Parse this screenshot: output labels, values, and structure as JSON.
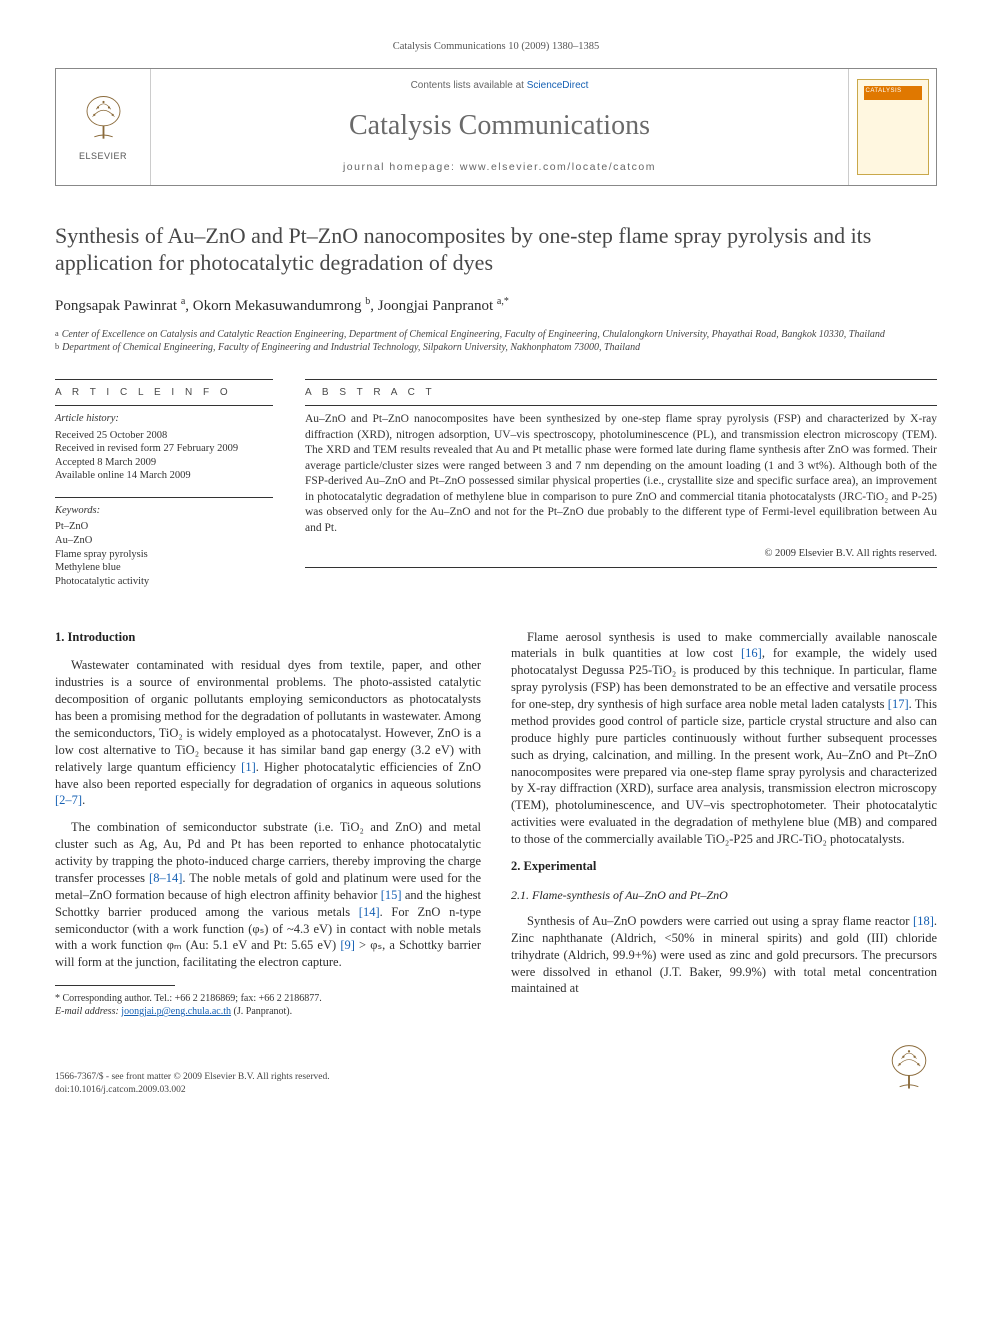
{
  "header": {
    "citation": "Catalysis Communications 10 (2009) 1380–1385"
  },
  "masthead": {
    "elsevier_label": "ELSEVIER",
    "contents_prefix": "Contents lists available at ",
    "contents_link": "ScienceDirect",
    "journal_name": "Catalysis Communications",
    "homepage": "journal homepage: www.elsevier.com/locate/catcom",
    "cover_label": "CATALYSIS"
  },
  "article": {
    "title": "Synthesis of Au–ZnO and Pt–ZnO nanocomposites by one-step flame spray pyrolysis and its application for photocatalytic degradation of dyes",
    "authors_html": "Pongsapak Pawinrat <sup>a</sup>, Okorn Mekasuwandumrong <sup>b</sup>, Joongjai Panpranot <sup>a,*</sup>",
    "affiliations": [
      {
        "marker": "a",
        "text": "Center of Excellence on Catalysis and Catalytic Reaction Engineering, Department of Chemical Engineering, Faculty of Engineering, Chulalongkorn University, Phayathai Road, Bangkok 10330, Thailand"
      },
      {
        "marker": "b",
        "text": "Department of Chemical Engineering, Faculty of Engineering and Industrial Technology, Silpakorn University, Nakhonphatom 73000, Thailand"
      }
    ]
  },
  "labels": {
    "article_info": "A R T I C L E   I N F O",
    "abstract": "A B S T R A C T"
  },
  "article_info": {
    "history_heading": "Article history:",
    "history": [
      "Received 25 October 2008",
      "Received in revised form 27 February 2009",
      "Accepted 8 March 2009",
      "Available online 14 March 2009"
    ],
    "keywords_heading": "Keywords:",
    "keywords": [
      "Pt–ZnO",
      "Au–ZnO",
      "Flame spray pyrolysis",
      "Methylene blue",
      "Photocatalytic activity"
    ]
  },
  "abstract": {
    "text": "Au–ZnO and Pt–ZnO nanocomposites have been synthesized by one-step flame spray pyrolysis (FSP) and characterized by X-ray diffraction (XRD), nitrogen adsorption, UV–vis spectroscopy, photoluminescence (PL), and transmission electron microscopy (TEM). The XRD and TEM results revealed that Au and Pt metallic phase were formed late during flame synthesis after ZnO was formed. Their average particle/cluster sizes were ranged between 3 and 7 nm depending on the amount loading (1 and 3 wt%). Although both of the FSP-derived Au–ZnO and Pt–ZnO possessed similar physical properties (i.e., crystallite size and specific surface area), an improvement in photocatalytic degradation of methylene blue in comparison to pure ZnO and commercial titania photocatalysts (JRC-TiO₂ and P-25) was observed only for the Au–ZnO and not for the Pt–ZnO due probably to the different type of Fermi-level equilibration between Au and Pt.",
    "copyright": "© 2009 Elsevier B.V. All rights reserved."
  },
  "body": {
    "section1_heading": "1. Introduction",
    "section1_paras": [
      "Wastewater contaminated with residual dyes from textile, paper, and other industries is a source of environmental problems. The photo-assisted catalytic decomposition of organic pollutants employing semiconductors as photocatalysts has been a promising method for the degradation of pollutants in wastewater. Among the semiconductors, TiO₂ is widely employed as a photocatalyst. However, ZnO is a low cost alternative to TiO₂ because it has similar band gap energy (3.2 eV) with relatively large quantum efficiency [1]. Higher photocatalytic efficiencies of ZnO have also been reported especially for degradation of organics in aqueous solutions [2–7].",
      "The combination of semiconductor substrate (i.e. TiO₂ and ZnO) and metal cluster such as Ag, Au, Pd and Pt has been reported to enhance photocatalytic activity by trapping the photo-induced charge carriers, thereby improving the charge transfer processes [8–14]. The noble metals of gold and platinum were used for the metal–ZnO formation because of high electron affinity behavior [15] and the highest Schottky barrier produced among the various metals [14]. For ZnO n-type semiconductor (with a work function (φₛ) of ~4.3 eV) in contact with noble metals with a work function φₘ (Au: 5.1 eV and Pt: 5.65 eV) [9] > φₛ, a Schottky barrier will form at the junction, facilitating the electron capture."
    ],
    "section1_col2_para": "Flame aerosol synthesis is used to make commercially available nanoscale materials in bulk quantities at low cost [16], for example, the widely used photocatalyst Degussa P25-TiO₂ is produced by this technique. In particular, flame spray pyrolysis (FSP) has been demonstrated to be an effective and versatile process for one-step, dry synthesis of high surface area noble metal laden catalysts [17]. This method provides good control of particle size, particle crystal structure and also can produce highly pure particles continuously without further subsequent processes such as drying, calcination, and milling. In the present work, Au–ZnO and Pt–ZnO nanocomposites were prepared via one-step flame spray pyrolysis and characterized by X-ray diffraction (XRD), surface area analysis, transmission electron microscopy (TEM), photoluminescence, and UV–vis spectrophotometer. Their photocatalytic activities were evaluated in the degradation of methylene blue (MB) and compared to those of the commercially available TiO₂-P25 and JRC-TiO₂ photocatalysts.",
    "section2_heading": "2. Experimental",
    "section2_1_heading": "2.1. Flame-synthesis of Au–ZnO and Pt–ZnO",
    "section2_1_para": "Synthesis of Au–ZnO powders were carried out using a spray flame reactor [18]. Zinc naphthanate (Aldrich, <50% in mineral spirits) and gold (III) chloride trihydrate (Aldrich, 99.9+%) were used as zinc and gold precursors. The precursors were dissolved in ethanol (J.T. Baker, 99.9%) with total metal concentration maintained at"
  },
  "footnote": {
    "corresponding": "* Corresponding author. Tel.: +66 2 2186869; fax: +66 2 2186877.",
    "email_label": "E-mail address:",
    "email": "joongjai.p@eng.chula.ac.th",
    "email_author": "(J. Panpranot)."
  },
  "footer": {
    "line1": "1566-7367/$ - see front matter © 2009 Elsevier B.V. All rights reserved.",
    "line2": "doi:10.1016/j.catcom.2009.03.002"
  },
  "colors": {
    "link": "#1560b3",
    "text": "#2e2e2e",
    "muted": "#6a6a6a"
  }
}
